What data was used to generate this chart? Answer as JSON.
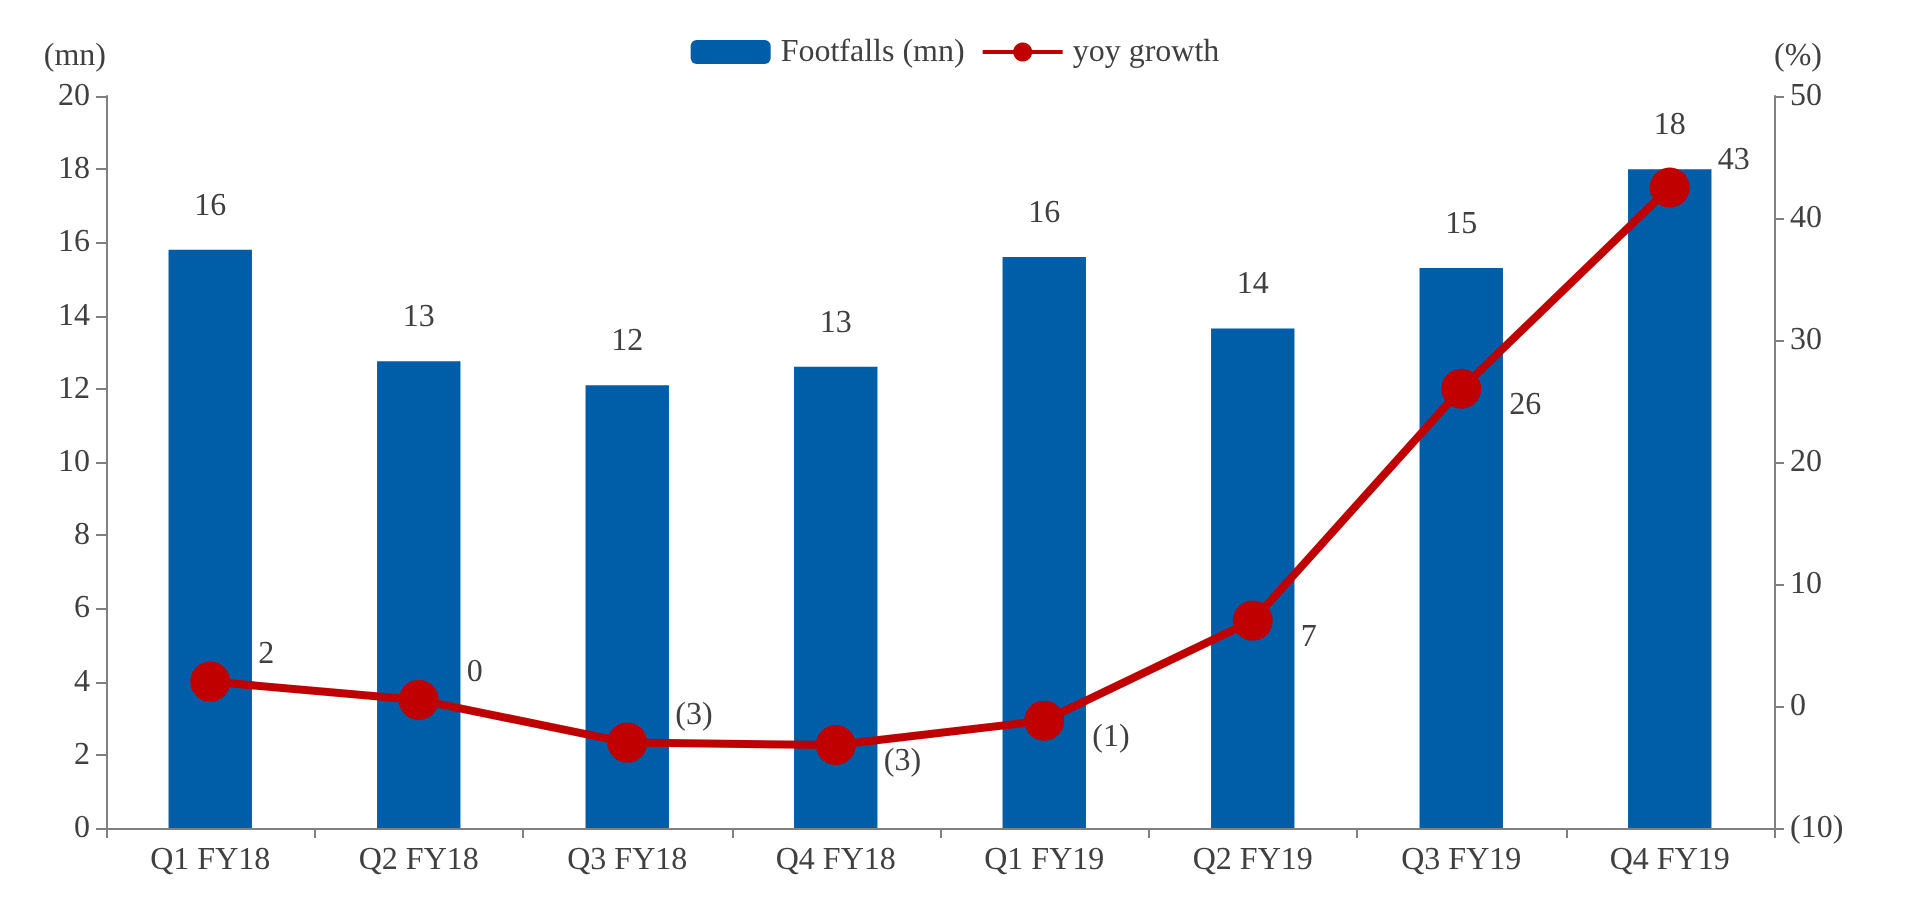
{
  "chart_data": {
    "type": "bar",
    "ylabel": "(mn)",
    "y2label": "(%)",
    "categories": [
      "Q1 FY18",
      "Q2 FY18",
      "Q3 FY18",
      "Q4 FY18",
      "Q1 FY19",
      "Q2 FY19",
      "Q3 FY19",
      "Q4 FY19"
    ],
    "series": [
      {
        "name": "Footfalls (mn)",
        "color": "#005ea8",
        "values": [
          15.8,
          12.75,
          12.1,
          12.6,
          15.6,
          13.65,
          15.3,
          18.0
        ],
        "value_labels": [
          "16",
          "13",
          "12",
          "13",
          "16",
          "14",
          "15",
          "18"
        ]
      },
      {
        "name": "yoy growth",
        "type": "line",
        "axis": "y2",
        "color": "#c00000",
        "marker": "circle",
        "values": [
          2,
          0.5,
          -3,
          -3.2,
          -1.2,
          7,
          26,
          42.5
        ],
        "value_labels": [
          "2",
          "0",
          "(3)",
          "(3)",
          "(1)",
          "7",
          "26",
          "43"
        ]
      }
    ],
    "ylim": [
      0,
      20
    ],
    "yticks": [
      0,
      2,
      4,
      6,
      8,
      10,
      12,
      14,
      16,
      18,
      20
    ],
    "y2lim": [
      -10,
      50
    ],
    "y2ticks": [
      {
        "value": -10,
        "label": "(10)"
      },
      0,
      10,
      20,
      30,
      40,
      50
    ],
    "grid": false,
    "legend": "top"
  }
}
